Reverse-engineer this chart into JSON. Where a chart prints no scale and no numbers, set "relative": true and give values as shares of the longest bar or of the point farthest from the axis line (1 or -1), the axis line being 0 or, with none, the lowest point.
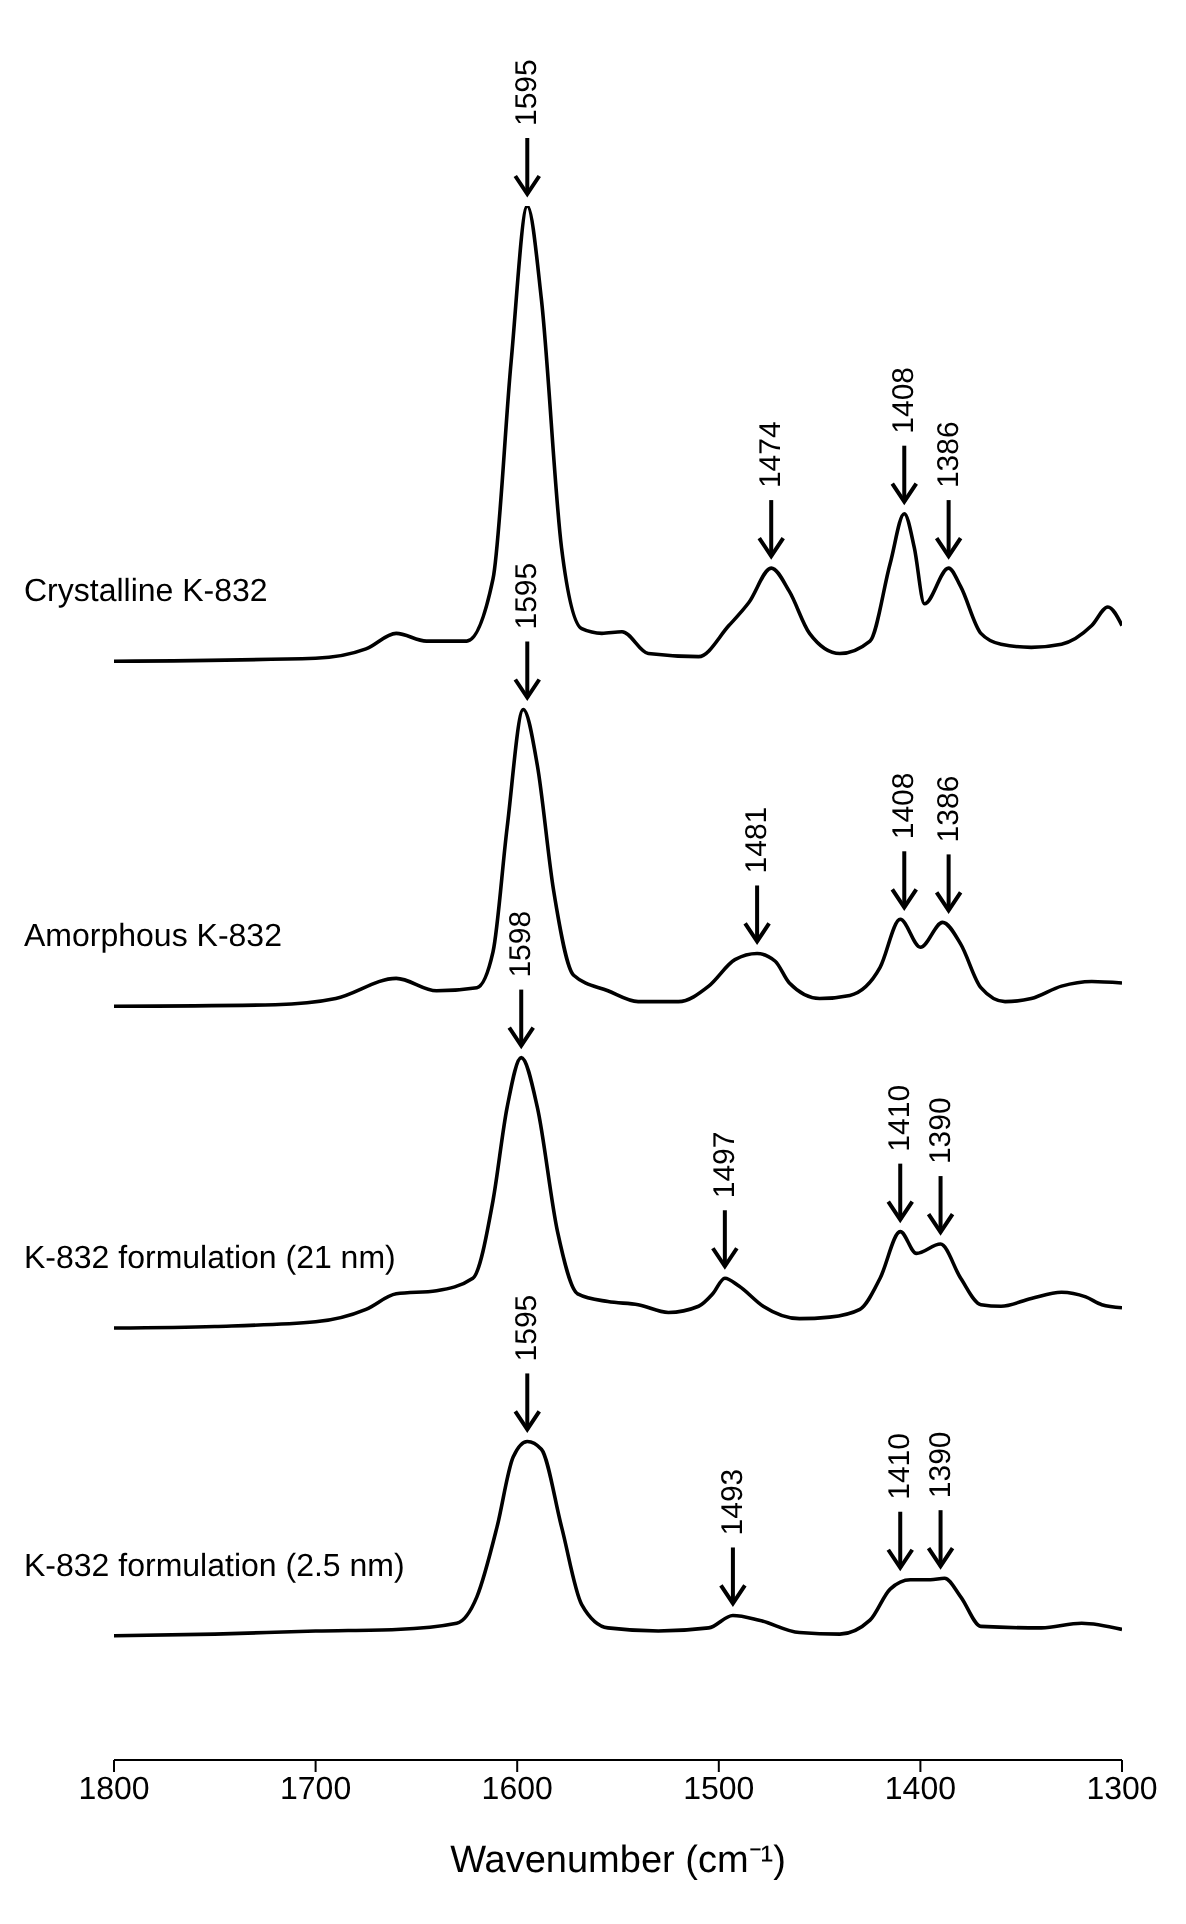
{
  "chart_data": {
    "type": "line",
    "xlabel": "Wavenumber (cm⁻¹)",
    "xlim": [
      1800,
      1300
    ],
    "xticks": [
      1800,
      1700,
      1600,
      1500,
      1400,
      1300
    ],
    "relative": true,
    "marker": "none",
    "series": [
      {
        "name": "Crystalline K-832",
        "color": "#000000",
        "x": [
          1800,
          1700,
          1675,
          1660,
          1645,
          1625,
          1612,
          1603,
          1595,
          1588,
          1578,
          1568,
          1558,
          1548,
          1535,
          1510,
          1495,
          1485,
          1474,
          1465,
          1455,
          1440,
          1425,
          1415,
          1408,
          1403,
          1398,
          1386,
          1380,
          1370,
          1360,
          1345,
          1330,
          1315,
          1307,
          1300
        ],
        "values": [
          0.707,
          0.709,
          0.715,
          0.725,
          0.72,
          0.72,
          0.76,
          0.9,
          1.0,
          0.94,
          0.78,
          0.728,
          0.725,
          0.726,
          0.712,
          0.71,
          0.73,
          0.745,
          0.767,
          0.752,
          0.725,
          0.712,
          0.72,
          0.77,
          0.802,
          0.78,
          0.744,
          0.767,
          0.755,
          0.725,
          0.718,
          0.716,
          0.718,
          0.73,
          0.742,
          0.73
        ]
      },
      {
        "name": "Amorphous K-832",
        "color": "#000000",
        "x": [
          1800,
          1720,
          1690,
          1660,
          1640,
          1620,
          1612,
          1605,
          1597,
          1590,
          1582,
          1572,
          1555,
          1540,
          1520,
          1505,
          1492,
          1481,
          1472,
          1465,
          1450,
          1435,
          1420,
          1410,
          1400,
          1389,
          1380,
          1370,
          1358,
          1345,
          1330,
          1315,
          1300
        ],
        "values": [
          0.485,
          0.486,
          0.49,
          0.503,
          0.495,
          0.497,
          0.52,
          0.6,
          0.676,
          0.64,
          0.56,
          0.505,
          0.495,
          0.488,
          0.488,
          0.498,
          0.515,
          0.519,
          0.514,
          0.5,
          0.49,
          0.492,
          0.51,
          0.541,
          0.523,
          0.539,
          0.525,
          0.497,
          0.488,
          0.49,
          0.498,
          0.501,
          0.5
        ]
      },
      {
        "name": "K-832 formulation (21 nm)",
        "color": "#000000",
        "x": [
          1800,
          1750,
          1700,
          1675,
          1660,
          1640,
          1622,
          1612,
          1605,
          1598,
          1590,
          1580,
          1570,
          1555,
          1540,
          1525,
          1510,
          1503,
          1497,
          1490,
          1478,
          1460,
          1445,
          1430,
          1420,
          1410,
          1402,
          1390,
          1380,
          1370,
          1360,
          1345,
          1330,
          1318,
          1310,
          1300
        ],
        "values": [
          0.278,
          0.279,
          0.282,
          0.29,
          0.3,
          0.302,
          0.31,
          0.36,
          0.42,
          0.452,
          0.42,
          0.34,
          0.3,
          0.295,
          0.293,
          0.288,
          0.292,
          0.3,
          0.31,
          0.305,
          0.292,
          0.284,
          0.285,
          0.29,
          0.31,
          0.34,
          0.326,
          0.332,
          0.31,
          0.293,
          0.292,
          0.297,
          0.301,
          0.298,
          0.293,
          0.291
        ]
      },
      {
        "name": "K-832 formulation (2.5 nm)",
        "color": "#000000",
        "x": [
          1800,
          1750,
          1700,
          1660,
          1630,
          1620,
          1610,
          1602,
          1595,
          1588,
          1578,
          1568,
          1555,
          1530,
          1505,
          1493,
          1480,
          1460,
          1440,
          1425,
          1415,
          1405,
          1395,
          1388,
          1380,
          1370,
          1340,
          1320,
          1300
        ],
        "values": [
          0.08,
          0.081,
          0.083,
          0.084,
          0.088,
          0.105,
          0.15,
          0.195,
          0.205,
          0.2,
          0.15,
          0.1,
          0.085,
          0.083,
          0.085,
          0.093,
          0.09,
          0.082,
          0.081,
          0.09,
          0.11,
          0.116,
          0.116,
          0.117,
          0.105,
          0.086,
          0.085,
          0.088,
          0.084
        ]
      }
    ],
    "annotations": [
      {
        "text": "1595",
        "x": 1595,
        "y": 1.0
      },
      {
        "text": "1474",
        "x": 1474,
        "y": 0.767
      },
      {
        "text": "1408",
        "x": 1408,
        "y": 0.802
      },
      {
        "text": "1386",
        "x": 1386,
        "y": 0.767
      },
      {
        "text": "1595",
        "x": 1595,
        "y": 0.676
      },
      {
        "text": "1481",
        "x": 1481,
        "y": 0.519
      },
      {
        "text": "1408",
        "x": 1408,
        "y": 0.541
      },
      {
        "text": "1386",
        "x": 1386,
        "y": 0.539
      },
      {
        "text": "1598",
        "x": 1598,
        "y": 0.452
      },
      {
        "text": "1497",
        "x": 1497,
        "y": 0.31
      },
      {
        "text": "1410",
        "x": 1410,
        "y": 0.34
      },
      {
        "text": "1390",
        "x": 1390,
        "y": 0.332
      },
      {
        "text": "1595",
        "x": 1595,
        "y": 0.205
      },
      {
        "text": "1493",
        "x": 1493,
        "y": 0.093
      },
      {
        "text": "1410",
        "x": 1410,
        "y": 0.116
      },
      {
        "text": "1390",
        "x": 1390,
        "y": 0.117
      }
    ]
  }
}
